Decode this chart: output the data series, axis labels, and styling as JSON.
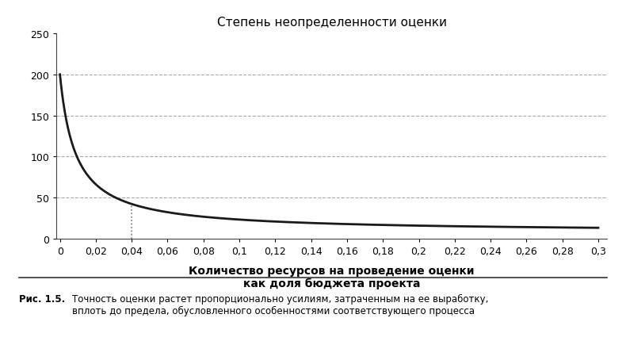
{
  "title": "Степень неопределенности оценки",
  "xlabel_line1": "Количество ресурсов на проведение оценки",
  "xlabel_line2": "как доля бюджета проекта",
  "ylim": [
    0,
    250
  ],
  "yticks": [
    0,
    50,
    100,
    150,
    200,
    250
  ],
  "xticks": [
    0,
    0.02,
    0.04,
    0.06,
    0.08,
    0.1,
    0.12,
    0.14,
    0.16,
    0.18,
    0.2,
    0.22,
    0.24,
    0.26,
    0.28,
    0.3
  ],
  "xtick_labels": [
    "0",
    "0,02",
    "0,04",
    "0,06",
    "0,08",
    "0,1",
    "0,12",
    "0,14",
    "0,16",
    "0,18",
    "0,2",
    "0,22",
    "0,24",
    "0,26",
    "0,28",
    "0,3"
  ],
  "curve_color": "#1a1a1a",
  "curve_linewidth": 2.0,
  "vline_x": 0.04,
  "vline_color": "#777777",
  "grid_color": "#aaaaaa",
  "grid_linewidth": 0.8,
  "background_color": "#ffffff",
  "title_fontsize": 11,
  "xlabel_fontsize": 10,
  "tick_fontsize": 9,
  "caption_bold": "Рис. 1.5.",
  "caption_text": "Точность оценки растет пропорционально усилиям, затраченным на ее выработку,\nвплоть до предела, обусловленного особенностями соответствующего процесса",
  "separator_color": "#333333",
  "a_param": 1.6274,
  "b_param": 0.00746,
  "c_param": 7.706,
  "xlim_left": -0.002,
  "xlim_right": 0.305
}
